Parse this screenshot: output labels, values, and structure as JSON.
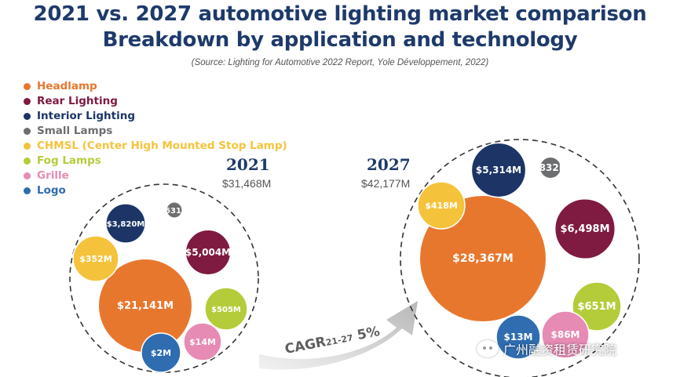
{
  "title_line1": "2021 vs. 2027 automotive lighting market comparison",
  "title_line2": "Breakdown by application and technology",
  "source": "(Source: Lighting for Automotive 2022 Report, Yole Développement, 2022)",
  "legend": [
    {
      "label": "Headlamp",
      "color": "#e8772e"
    },
    {
      "label": "Rear Lighting",
      "color": "#7f1a40"
    },
    {
      "label": "Interior Lighting",
      "color": "#1c3566"
    },
    {
      "label": "Small Lamps",
      "color": "#6d6e70"
    },
    {
      "label": "CHMSL (Center High Mounted Stop Lamp)",
      "color": "#f5c33b"
    },
    {
      "label": "Fog Lamps",
      "color": "#b5cc3a"
    },
    {
      "label": "Grille",
      "color": "#e68bb4"
    },
    {
      "label": "Logo",
      "color": "#2f6cb0"
    }
  ],
  "cagr": {
    "prefix": "CAGR",
    "sub": "21-27",
    "value": "5%"
  },
  "watermark": "广州融资租赁研究院",
  "chart_data": {
    "type": "bubble",
    "unit": "$M",
    "categories": [
      "Headlamp",
      "Rear Lighting",
      "Interior Lighting",
      "Small Lamps",
      "CHMSL (Center High Mounted Stop Lamp)",
      "Fog Lamps",
      "Grille",
      "Logo"
    ],
    "series": [
      {
        "name": "2021",
        "total_label": "$31,468M",
        "values": [
          21141,
          5004,
          3820,
          631,
          352,
          505,
          14,
          2
        ],
        "labels": [
          "$21,141M",
          "$5,004M",
          "$3,820M",
          "$631M",
          "$352M",
          "$505M",
          "$14M",
          "$2M"
        ]
      },
      {
        "name": "2027",
        "total_label": "$42,177M",
        "values": [
          28367,
          6498,
          5314,
          832,
          418,
          651,
          86,
          13
        ],
        "labels": [
          "$28,367M",
          "$6,498M",
          "$5,314M",
          "$832M",
          "$418M",
          "$651M",
          "$86M",
          "$13M"
        ]
      }
    ]
  }
}
